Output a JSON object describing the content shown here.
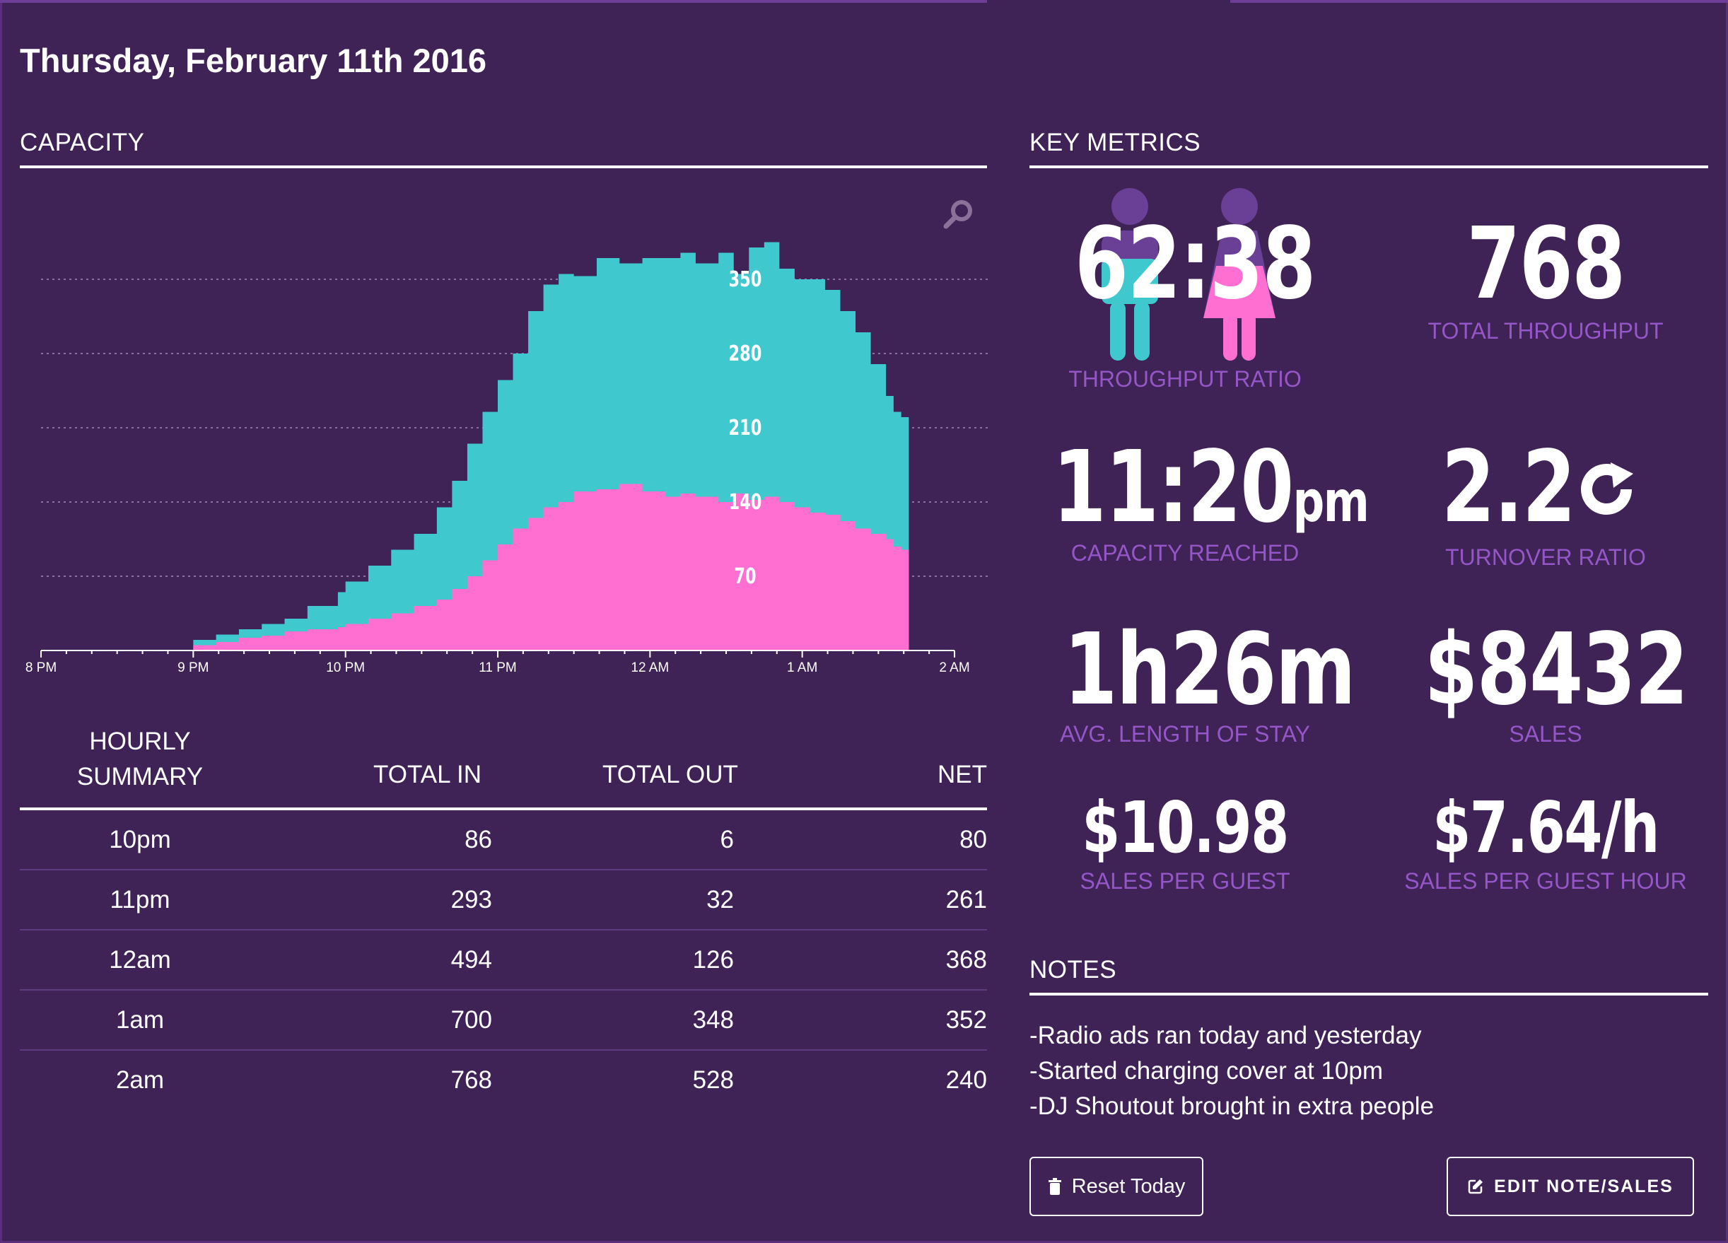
{
  "header": {
    "date": "Thursday, February 11th 2016"
  },
  "capacity": {
    "title": "CAPACITY",
    "chart_data": {
      "type": "area",
      "x_labels": [
        "8 PM",
        "9 PM",
        "10 PM",
        "11 PM",
        "12 AM",
        "1 AM",
        "2 AM"
      ],
      "y_ticks": [
        70,
        140,
        210,
        280,
        350
      ],
      "ylim": [
        0,
        400
      ],
      "xlim_hours": [
        20,
        26
      ],
      "grid": "horizontal dotted",
      "series": [
        {
          "key": "occupancy",
          "color": "#40c8cf",
          "x": [
            21.0,
            21.15,
            21.3,
            21.45,
            21.6,
            21.75,
            21.95,
            22.0,
            22.15,
            22.3,
            22.45,
            22.6,
            22.7,
            22.8,
            22.9,
            23.0,
            23.1,
            23.2,
            23.3,
            23.4,
            23.5,
            23.65,
            23.8,
            23.95,
            24.1,
            24.2,
            24.3,
            24.45,
            24.55,
            24.65,
            24.75,
            24.85,
            24.95,
            25.05,
            25.15,
            25.25,
            25.35,
            25.45,
            25.55,
            25.6,
            25.65,
            25.7
          ],
          "y": [
            10,
            15,
            20,
            25,
            30,
            42,
            55,
            65,
            80,
            95,
            110,
            135,
            160,
            195,
            225,
            255,
            280,
            320,
            345,
            355,
            353,
            370,
            365,
            370,
            370,
            375,
            365,
            375,
            355,
            380,
            385,
            360,
            350,
            350,
            340,
            320,
            300,
            270,
            240,
            225,
            220,
            215
          ]
        },
        {
          "key": "in-house",
          "color": "#ff6fd2",
          "x": [
            21.0,
            21.15,
            21.3,
            21.45,
            21.6,
            21.75,
            21.95,
            22.0,
            22.15,
            22.3,
            22.45,
            22.6,
            22.7,
            22.8,
            22.9,
            23.0,
            23.1,
            23.2,
            23.3,
            23.4,
            23.5,
            23.65,
            23.8,
            23.95,
            24.1,
            24.2,
            24.3,
            24.45,
            24.55,
            24.65,
            24.75,
            24.85,
            24.95,
            25.05,
            25.15,
            25.25,
            25.35,
            25.45,
            25.55,
            25.6,
            25.65,
            25.7
          ],
          "y": [
            5,
            8,
            12,
            14,
            18,
            20,
            22,
            25,
            30,
            35,
            42,
            48,
            58,
            70,
            85,
            100,
            115,
            125,
            135,
            140,
            150,
            152,
            157,
            150,
            145,
            148,
            145,
            140,
            148,
            142,
            145,
            140,
            135,
            130,
            128,
            122,
            115,
            110,
            105,
            98,
            95,
            95
          ]
        }
      ]
    }
  },
  "summary": {
    "headers": {
      "period": "HOURLY\nSUMMARY",
      "in": "TOTAL IN",
      "out": "TOTAL OUT",
      "net": "NET"
    },
    "rows": [
      {
        "period": "10pm",
        "in": "86",
        "out": "6",
        "net": "80"
      },
      {
        "period": "11pm",
        "in": "293",
        "out": "32",
        "net": "261"
      },
      {
        "period": "12am",
        "in": "494",
        "out": "126",
        "net": "368"
      },
      {
        "period": "1am",
        "in": "700",
        "out": "348",
        "net": "352"
      },
      {
        "period": "2am",
        "in": "768",
        "out": "528",
        "net": "240"
      }
    ]
  },
  "metrics": {
    "title": "KEY METRICS",
    "ratio": {
      "value": "62:38",
      "label": "THROUGHPUT RATIO"
    },
    "throughput": {
      "value": "768",
      "label": "TOTAL THROUGHPUT"
    },
    "capacity_reached": {
      "value": "11:20",
      "suffix": "pm",
      "label": "CAPACITY REACHED"
    },
    "turnover": {
      "value": "2.2",
      "label": "TURNOVER RATIO"
    },
    "stay": {
      "value": "1h26m",
      "label": "AVG. LENGTH OF STAY"
    },
    "sales": {
      "value": "$8432",
      "label": "SALES"
    },
    "per_guest": {
      "value": "$10.98",
      "label": "SALES PER GUEST"
    },
    "per_guest_hour": {
      "value": "$7.64/h",
      "label": "SALES PER GUEST HOUR"
    },
    "colors": {
      "male": "#40c8cf",
      "female": "#ff6fd2",
      "accent": "#9556c8"
    }
  },
  "notes": {
    "title": "NOTES",
    "lines": [
      "-Radio ads ran today and yesterday",
      "-Started charging cover at 10pm",
      "-DJ Shoutout brought in extra people"
    ]
  },
  "buttons": {
    "reset": "Reset Today",
    "edit": "EDIT NOTE/SALES"
  }
}
